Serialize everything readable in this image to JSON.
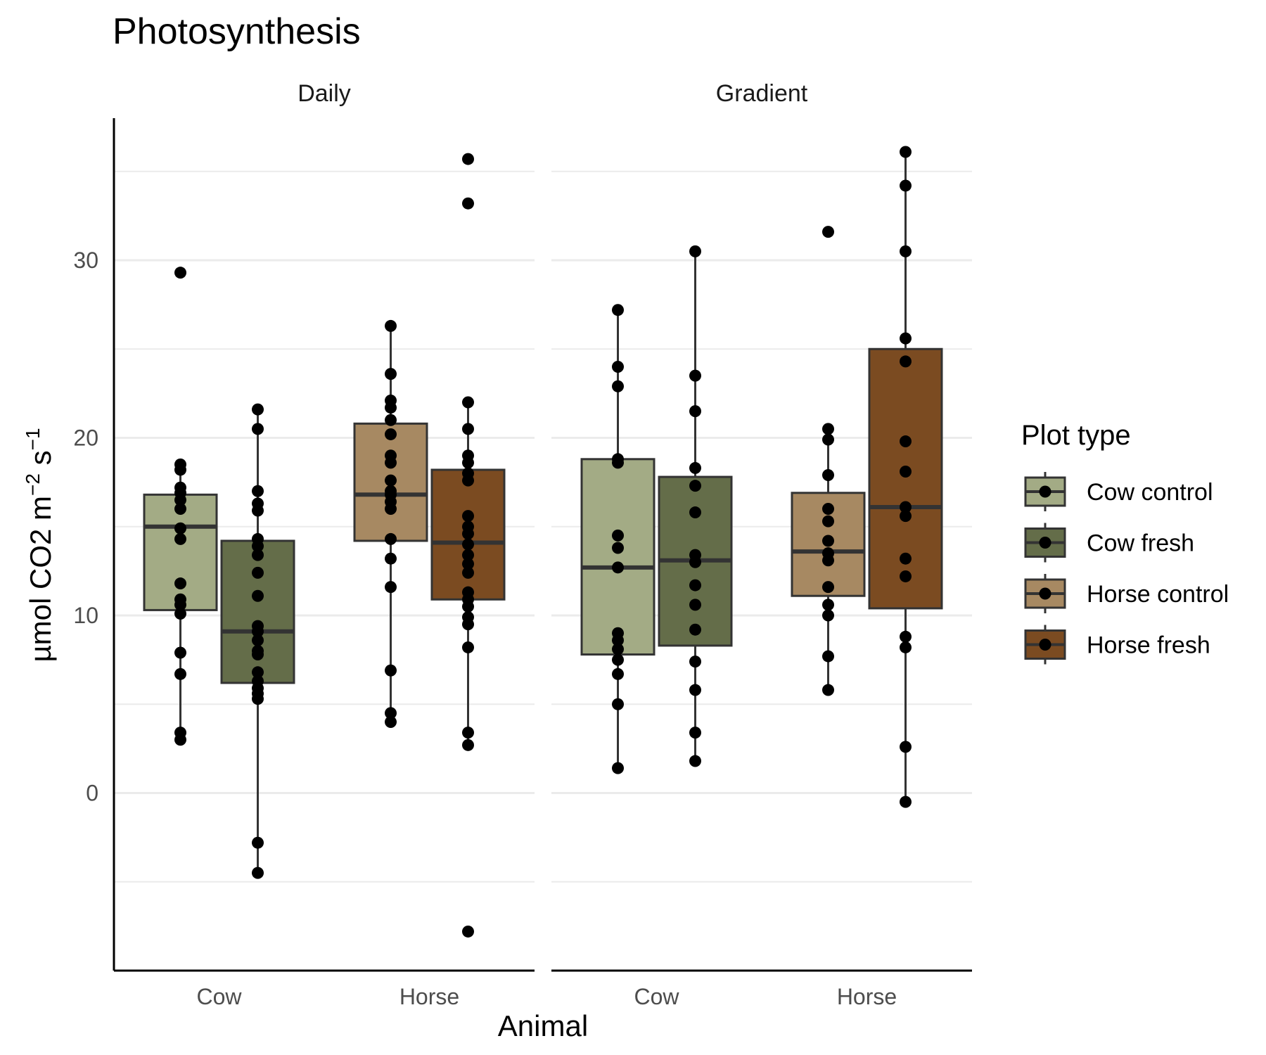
{
  "chart_data": {
    "type": "box",
    "title": "Photosynthesis",
    "xlabel": "Animal",
    "ylabel": "µmol CO2 m",
    "ylabel_sup1": "−2",
    "ylabel_mid": " s",
    "ylabel_sup2": "−1",
    "ylim": [
      -10,
      38
    ],
    "yticks": [
      0,
      10,
      20,
      30
    ],
    "grid": true,
    "legend_title": "Plot type",
    "legend_position": "right",
    "categories": [
      "Cow",
      "Horse"
    ],
    "facets": [
      "Daily",
      "Gradient"
    ],
    "series": [
      {
        "name": "Cow control",
        "color": "#a3ab85"
      },
      {
        "name": "Cow fresh",
        "color": "#646d49"
      },
      {
        "name": "Horse control",
        "color": "#a78962"
      },
      {
        "name": "Horse fresh",
        "color": "#7b4b21"
      }
    ],
    "panels": [
      {
        "facet": "Daily",
        "boxes": [
          {
            "category": "Cow",
            "series": "Cow control",
            "q1": 10.3,
            "median": 15.0,
            "q3": 16.8,
            "whisker_low": 3.0,
            "whisker_high": 18.5,
            "outliers": [
              29.3
            ],
            "points": [
              29.3,
              18.5,
              18.2,
              17.2,
              16.9,
              16.5,
              16.0,
              14.9,
              14.3,
              11.8,
              10.9,
              10.6,
              10.1,
              7.9,
              6.7,
              3.4,
              3.0
            ]
          },
          {
            "category": "Cow",
            "series": "Cow fresh",
            "q1": 6.2,
            "median": 9.1,
            "q3": 14.2,
            "whisker_low": -4.5,
            "whisker_high": 21.6,
            "outliers": [],
            "points": [
              21.6,
              20.5,
              17.0,
              16.3,
              15.9,
              14.3,
              13.9,
              13.4,
              12.4,
              11.1,
              9.4,
              9.1,
              8.6,
              8.0,
              7.8,
              6.8,
              6.3,
              5.9,
              5.6,
              5.3,
              -2.8,
              -4.5
            ]
          },
          {
            "category": "Horse",
            "series": "Horse control",
            "q1": 14.2,
            "median": 16.8,
            "q3": 20.8,
            "whisker_low": 4.0,
            "whisker_high": 26.3,
            "outliers": [],
            "points": [
              26.3,
              23.6,
              22.1,
              21.7,
              21.0,
              20.2,
              19.0,
              18.6,
              17.6,
              17.0,
              16.8,
              16.4,
              16.0,
              14.3,
              13.2,
              11.6,
              6.9,
              4.5,
              4.0
            ]
          },
          {
            "category": "Horse",
            "series": "Horse fresh",
            "q1": 10.9,
            "median": 14.1,
            "q3": 18.2,
            "whisker_low": 2.7,
            "whisker_high": 22.0,
            "outliers": [
              35.7,
              33.2,
              -7.8
            ],
            "points": [
              35.7,
              33.2,
              22.0,
              20.5,
              19.0,
              18.6,
              18.0,
              17.6,
              15.6,
              15.0,
              14.6,
              14.0,
              13.4,
              12.9,
              12.4,
              11.3,
              10.9,
              10.5,
              9.9,
              9.5,
              8.2,
              3.4,
              2.7,
              -7.8
            ]
          }
        ]
      },
      {
        "facet": "Gradient",
        "boxes": [
          {
            "category": "Cow",
            "series": "Cow control",
            "q1": 7.8,
            "median": 12.7,
            "q3": 18.8,
            "whisker_low": 1.4,
            "whisker_high": 27.2,
            "outliers": [],
            "points": [
              27.2,
              24.0,
              22.9,
              18.8,
              18.6,
              14.5,
              13.8,
              12.7,
              9.0,
              8.6,
              8.1,
              7.5,
              6.7,
              5.0,
              1.4
            ]
          },
          {
            "category": "Cow",
            "series": "Cow fresh",
            "q1": 8.3,
            "median": 13.1,
            "q3": 17.8,
            "whisker_low": 1.8,
            "whisker_high": 30.5,
            "outliers": [],
            "points": [
              30.5,
              23.5,
              21.5,
              18.3,
              17.3,
              15.8,
              13.4,
              13.0,
              11.7,
              10.6,
              9.2,
              7.4,
              5.8,
              3.4,
              1.8
            ]
          },
          {
            "category": "Horse",
            "series": "Horse control",
            "q1": 11.1,
            "median": 13.6,
            "q3": 16.9,
            "whisker_low": 5.8,
            "whisker_high": 20.5,
            "outliers": [
              31.6
            ],
            "points": [
              31.6,
              20.5,
              19.9,
              17.9,
              16.0,
              15.3,
              14.2,
              13.5,
              13.1,
              11.6,
              10.6,
              10.0,
              7.7,
              5.8
            ]
          },
          {
            "category": "Horse",
            "series": "Horse fresh",
            "q1": 10.4,
            "median": 16.1,
            "q3": 25.0,
            "whisker_low": -0.5,
            "whisker_high": 36.1,
            "outliers": [],
            "points": [
              36.1,
              34.2,
              30.5,
              25.6,
              24.3,
              19.8,
              18.1,
              16.1,
              15.6,
              13.2,
              12.2,
              8.8,
              8.2,
              2.6,
              -0.5
            ]
          }
        ]
      }
    ]
  }
}
